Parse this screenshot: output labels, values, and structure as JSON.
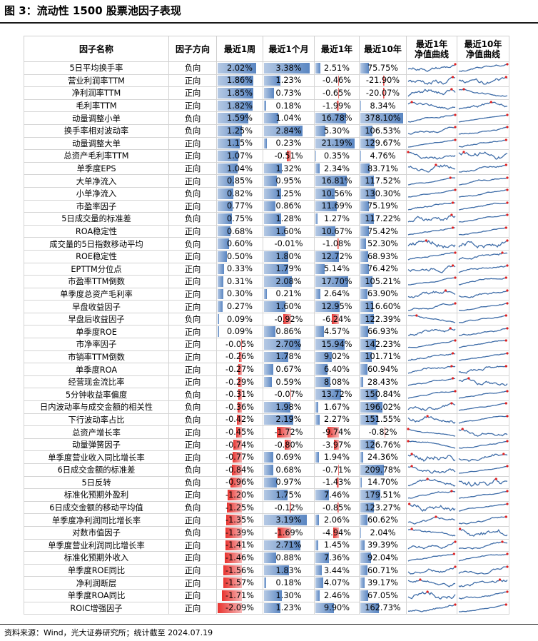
{
  "title": "图 3：流动性 1500 股票池因子表现",
  "source": "资料来源：Wind，光大证券研究所；统计截至 2024.07.19",
  "headers": {
    "name": "因子名称",
    "direction": "因子方向",
    "w1": "最近1周",
    "m1": "最近1个月",
    "y1": "最近1年",
    "y10": "最近10年",
    "curve1": "最近1年\n净值曲线",
    "curve10": "最近10年\n净值曲线"
  },
  "colors": {
    "positive": "#5a86c2",
    "negative": "#e8332f",
    "line": "#3f6da8",
    "marker": "#e02020"
  },
  "rows": [
    {
      "name": "5日平均换手率",
      "dir": "负向",
      "w1": "2.02%",
      "m1": "3.38%",
      "y1": "2.51%",
      "y10": "75.75%"
    },
    {
      "name": "营业利润率TTM",
      "dir": "正向",
      "w1": "1.86%",
      "m1": "1.23%",
      "y1": "-0.46%",
      "y10": "-21.90%"
    },
    {
      "name": "净利润率TTM",
      "dir": "正向",
      "w1": "1.85%",
      "m1": "0.73%",
      "y1": "-0.65%",
      "y10": "-20.07%"
    },
    {
      "name": "毛利率TTM",
      "dir": "正向",
      "w1": "1.82%",
      "m1": "0.18%",
      "y1": "-1.99%",
      "y10": "8.34%"
    },
    {
      "name": "动量调整小单",
      "dir": "负向",
      "w1": "1.59%",
      "m1": "1.04%",
      "y1": "16.78%",
      "y10": "378.10%"
    },
    {
      "name": "换手率相对波动率",
      "dir": "负向",
      "w1": "1.25%",
      "m1": "2.84%",
      "y1": "5.30%",
      "y10": "106.53%"
    },
    {
      "name": "动量调整大单",
      "dir": "正向",
      "w1": "1.15%",
      "m1": "0.23%",
      "y1": "21.19%",
      "y10": "129.67%"
    },
    {
      "name": "总资产毛利率TTM",
      "dir": "正向",
      "w1": "1.07%",
      "m1": "-0.51%",
      "y1": "0.35%",
      "y10": "4.76%"
    },
    {
      "name": "单季度EPS",
      "dir": "正向",
      "w1": "1.04%",
      "m1": "1.32%",
      "y1": "2.34%",
      "y10": "83.71%"
    },
    {
      "name": "大单净流入",
      "dir": "正向",
      "w1": "0.85%",
      "m1": "0.95%",
      "y1": "16.81%",
      "y10": "117.52%"
    },
    {
      "name": "小单净流入",
      "dir": "负向",
      "w1": "0.82%",
      "m1": "1.25%",
      "y1": "10.56%",
      "y10": "130.30%"
    },
    {
      "name": "市盈率因子",
      "dir": "正向",
      "w1": "0.77%",
      "m1": "0.86%",
      "y1": "11.69%",
      "y10": "75.19%"
    },
    {
      "name": "5日成交量的标准差",
      "dir": "负向",
      "w1": "0.75%",
      "m1": "1.28%",
      "y1": "1.27%",
      "y10": "117.22%"
    },
    {
      "name": "ROA稳定性",
      "dir": "正向",
      "w1": "0.68%",
      "m1": "1.60%",
      "y1": "10.67%",
      "y10": "75.42%"
    },
    {
      "name": "成交量的5日指数移动平均",
      "dir": "负向",
      "w1": "0.60%",
      "m1": "-0.01%",
      "y1": "-1.08%",
      "y10": "52.30%"
    },
    {
      "name": "ROE稳定性",
      "dir": "正向",
      "w1": "0.50%",
      "m1": "1.80%",
      "y1": "12.72%",
      "y10": "68.93%"
    },
    {
      "name": "EPTTM分位点",
      "dir": "正向",
      "w1": "0.33%",
      "m1": "1.79%",
      "y1": "5.14%",
      "y10": "76.42%"
    },
    {
      "name": "市盈率TTM倒数",
      "dir": "正向",
      "w1": "0.31%",
      "m1": "2.08%",
      "y1": "17.70%",
      "y10": "105.21%"
    },
    {
      "name": "单季度总资产毛利率",
      "dir": "正向",
      "w1": "0.30%",
      "m1": "0.21%",
      "y1": "2.64%",
      "y10": "63.90%"
    },
    {
      "name": "早盘收益因子",
      "dir": "正向",
      "w1": "0.27%",
      "m1": "1.60%",
      "y1": "12.95%",
      "y10": "116.60%"
    },
    {
      "name": "早盘后收益因子",
      "dir": "负向",
      "w1": "0.09%",
      "m1": "-0.92%",
      "y1": "-6.24%",
      "y10": "122.39%"
    },
    {
      "name": "单季度ROE",
      "dir": "正向",
      "w1": "0.09%",
      "m1": "0.86%",
      "y1": "4.57%",
      "y10": "66.93%"
    },
    {
      "name": "市净率因子",
      "dir": "正向",
      "w1": "-0.05%",
      "m1": "2.70%",
      "y1": "15.94%",
      "y10": "142.23%"
    },
    {
      "name": "市销率TTM倒数",
      "dir": "正向",
      "w1": "-0.26%",
      "m1": "1.78%",
      "y1": "9.02%",
      "y10": "101.71%"
    },
    {
      "name": "单季度ROA",
      "dir": "正向",
      "w1": "-0.27%",
      "m1": "0.67%",
      "y1": "6.40%",
      "y10": "60.94%"
    },
    {
      "name": "经营现金流比率",
      "dir": "正向",
      "w1": "-0.29%",
      "m1": "0.59%",
      "y1": "8.08%",
      "y10": "28.43%"
    },
    {
      "name": "5分钟收益率偏度",
      "dir": "负向",
      "w1": "-0.31%",
      "m1": "-0.07%",
      "y1": "13.72%",
      "y10": "150.84%"
    },
    {
      "name": "日内波动率与成交金额的相关性",
      "dir": "负向",
      "w1": "-0.36%",
      "m1": "1.98%",
      "y1": "1.67%",
      "y10": "196.02%"
    },
    {
      "name": "下行波动率占比",
      "dir": "负向",
      "w1": "-0.42%",
      "m1": "2.19%",
      "y1": "2.27%",
      "y10": "151.55%"
    },
    {
      "name": "总资产增长率",
      "dir": "正向",
      "w1": "-0.45%",
      "m1": "-1.72%",
      "y1": "-9.74%",
      "y10": "-0.82%"
    },
    {
      "name": "动量弹簧因子",
      "dir": "正向",
      "w1": "-0.74%",
      "m1": "-0.80%",
      "y1": "-3.97%",
      "y10": "126.76%"
    },
    {
      "name": "单季度营业收入同比增长率",
      "dir": "正向",
      "w1": "-0.77%",
      "m1": "0.69%",
      "y1": "1.94%",
      "y10": "24.36%"
    },
    {
      "name": "6日成交金额的标准差",
      "dir": "负向",
      "w1": "-0.84%",
      "m1": "0.68%",
      "y1": "-0.71%",
      "y10": "209.78%"
    },
    {
      "name": "5日反转",
      "dir": "负向",
      "w1": "-0.96%",
      "m1": "0.97%",
      "y1": "-1.43%",
      "y10": "14.70%"
    },
    {
      "name": "标准化预期外盈利",
      "dir": "正向",
      "w1": "-1.20%",
      "m1": "1.75%",
      "y1": "7.46%",
      "y10": "179.51%"
    },
    {
      "name": "6日成交金额的移动平均值",
      "dir": "负向",
      "w1": "-1.25%",
      "m1": "-0.12%",
      "y1": "-0.85%",
      "y10": "123.27%"
    },
    {
      "name": "单季度净利润同比增长率",
      "dir": "正向",
      "w1": "-1.35%",
      "m1": "3.19%",
      "y1": "2.06%",
      "y10": "60.62%"
    },
    {
      "name": "对数市值因子",
      "dir": "负向",
      "w1": "-1.39%",
      "m1": "-1.69%",
      "y1": "-4.94%",
      "y10": "2.04%"
    },
    {
      "name": "单季度营业利润同比增长率",
      "dir": "正向",
      "w1": "-1.41%",
      "m1": "2.71%",
      "y1": "1.45%",
      "y10": "39.39%"
    },
    {
      "name": "标准化预期外收入",
      "dir": "正向",
      "w1": "-1.46%",
      "m1": "0.88%",
      "y1": "7.36%",
      "y10": "92.04%"
    },
    {
      "name": "单季度ROE同比",
      "dir": "正向",
      "w1": "-1.56%",
      "m1": "1.83%",
      "y1": "3.44%",
      "y10": "60.71%"
    },
    {
      "name": "净利润断层",
      "dir": "正向",
      "w1": "-1.57%",
      "m1": "0.18%",
      "y1": "4.07%",
      "y10": "39.17%"
    },
    {
      "name": "单季度ROA同比",
      "dir": "正向",
      "w1": "-1.71%",
      "m1": "1.30%",
      "y1": "2.46%",
      "y10": "67.05%"
    },
    {
      "name": "ROIC增强因子",
      "dir": "正向",
      "w1": "-2.09%",
      "m1": "1.23%",
      "y1": "9.90%",
      "y10": "162.73%"
    }
  ]
}
